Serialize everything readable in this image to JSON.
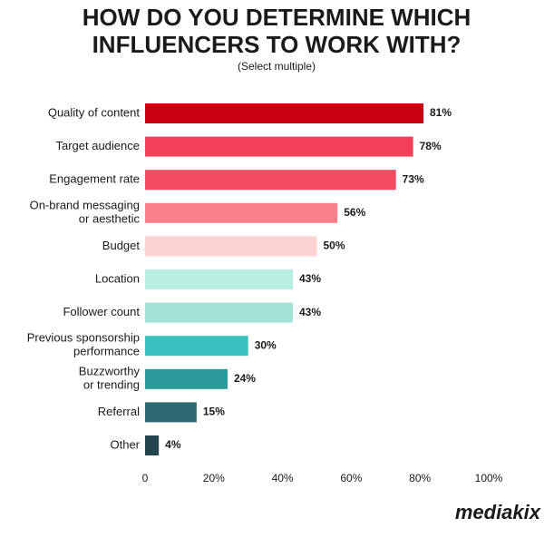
{
  "chart_data": {
    "type": "hbar",
    "title": "HOW DO YOU DETERMINE WHICH\nINFLUENCERS TO WORK WITH?",
    "subtitle": "(Select multiple)",
    "categories": [
      "Quality of content",
      "Target audience",
      "Engagement rate",
      "On-brand messaging\nor aesthetic",
      "Budget",
      "Location",
      "Follower count",
      "Previous sponsorship\nperformance",
      "Buzzworthy\nor trending",
      "Referral",
      "Other"
    ],
    "values": [
      81,
      78,
      73,
      56,
      50,
      43,
      43,
      30,
      24,
      15,
      4
    ],
    "value_labels": [
      "81%",
      "78%",
      "73%",
      "56%",
      "50%",
      "43%",
      "43%",
      "30%",
      "24%",
      "15%",
      "4%"
    ],
    "colors": [
      "#c8000f",
      "#f5405a",
      "#f24a5e",
      "#f7808c",
      "#fcd2d2",
      "#b8efe2",
      "#a2e3d6",
      "#38bfbf",
      "#2a9a9b",
      "#2c6870",
      "#23434f"
    ],
    "xlim": [
      0,
      100
    ],
    "xticks": [
      0,
      {
        "value": 20,
        "label": "20%"
      },
      {
        "value": 40,
        "label": "40%"
      },
      {
        "value": 60,
        "label": "60%"
      },
      {
        "value": 80,
        "label": "80%"
      },
      {
        "value": 100,
        "label": "100%"
      }
    ],
    "brand": "mediakix"
  }
}
